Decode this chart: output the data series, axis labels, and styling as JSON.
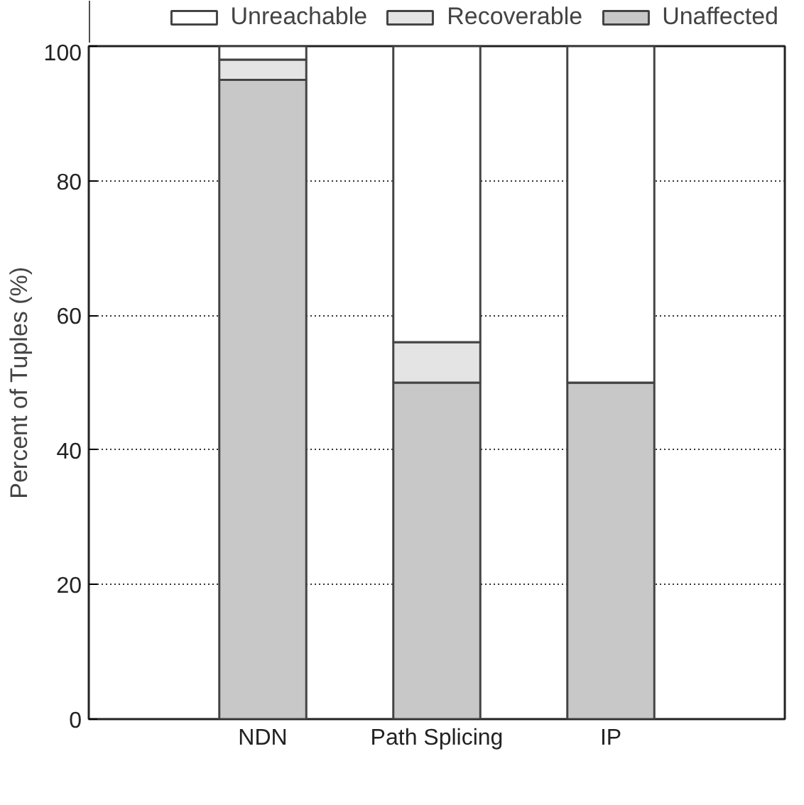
{
  "chart_data": {
    "type": "bar",
    "stacked": true,
    "ylabel": "Percent of Tuples (%)",
    "categories": [
      "NDN",
      "Path Splicing",
      "IP"
    ],
    "series": [
      {
        "name": "Unaffected",
        "color": "#c8c8c8",
        "values": [
          95,
          50,
          50
        ]
      },
      {
        "name": "Recoverable",
        "color": "#e4e4e4",
        "values": [
          3,
          6,
          0
        ]
      },
      {
        "name": "Unreachable",
        "color": "#ffffff",
        "values": [
          2,
          44,
          50
        ]
      }
    ],
    "ylim": [
      0,
      100
    ],
    "yticks": [
      0,
      20,
      40,
      60,
      80,
      100
    ],
    "grid": "y",
    "legend": "top"
  }
}
